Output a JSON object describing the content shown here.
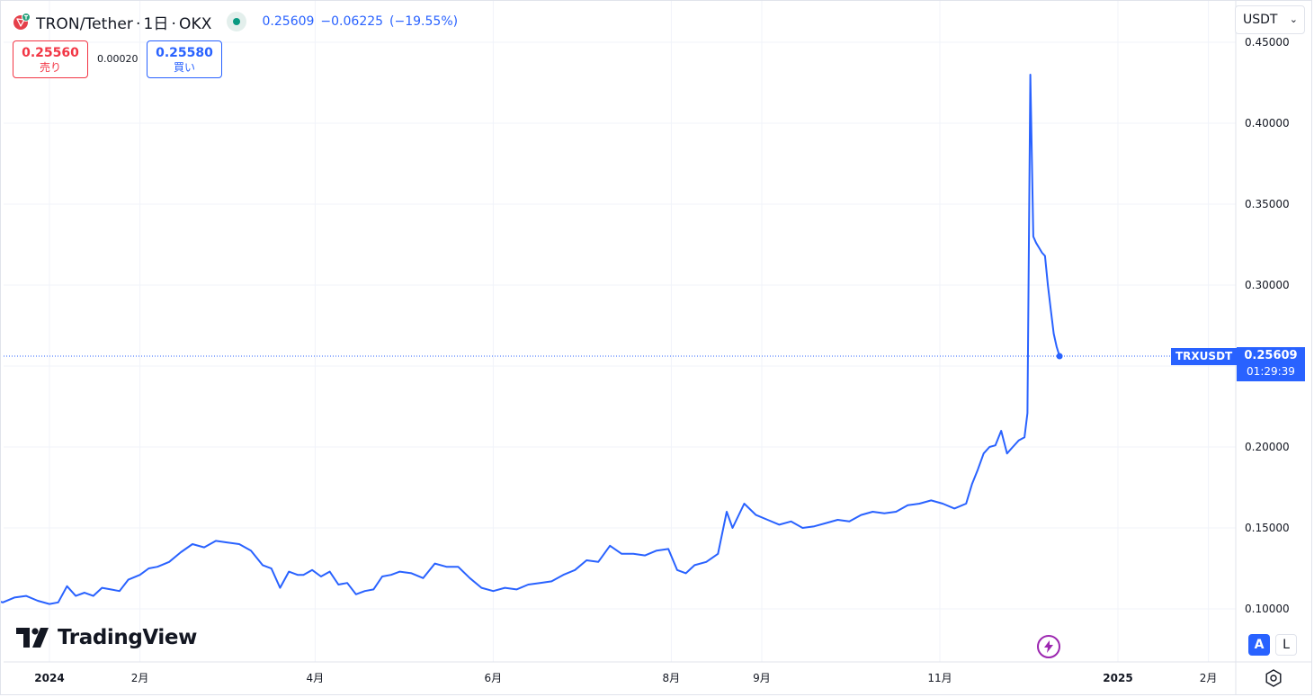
{
  "header": {
    "symbol_name": "TRON/Tether",
    "interval": "1日",
    "exchange": "OKX",
    "last_price": "0.25609",
    "change": "−0.06225",
    "change_pct": "(−19.55%)",
    "symbol_icon": "tron-logo-icon",
    "status_icon": "market-open-dot-icon"
  },
  "trade": {
    "sell_price": "0.25560",
    "sell_label": "売り",
    "spread": "0.00020",
    "buy_price": "0.25580",
    "buy_label": "買い"
  },
  "currency_select": {
    "value": "USDT",
    "icon": "chevron-down-icon"
  },
  "last_price_tag": {
    "symbol": "TRXUSDT",
    "price": "0.25609",
    "countdown": "01:29:39"
  },
  "brand": {
    "logo_text": "TradingView"
  },
  "controls": {
    "auto_scale": "A",
    "log_scale": "L",
    "flash_icon": "lightning-icon",
    "settings_icon": "gear-icon"
  },
  "colors": {
    "line": "#2962ff",
    "sell": "#f23645",
    "buy": "#2962ff",
    "status_green": "#089981",
    "flash": "#9c27b0"
  },
  "chart_data": {
    "type": "line",
    "title": "TRON/Tether · 1日 · OKX",
    "x_start": "2023-12-01",
    "x_end": "2025-03-01",
    "xlabel": "",
    "ylabel": "",
    "ylim": [
      0.08,
      0.45
    ],
    "y_ticks": [
      "0.10000",
      "0.15000",
      "0.20000",
      "0.25000",
      "0.30000",
      "0.35000",
      "0.40000",
      "0.45000"
    ],
    "x_ticks": [
      {
        "date": "2024-01-01",
        "label": "2024",
        "bold": true
      },
      {
        "date": "2024-02-01",
        "label": "2月",
        "bold": false
      },
      {
        "date": "2024-04-01",
        "label": "4月",
        "bold": false
      },
      {
        "date": "2024-06-01",
        "label": "6月",
        "bold": false
      },
      {
        "date": "2024-08-01",
        "label": "8月",
        "bold": false
      },
      {
        "date": "2024-09-01",
        "label": "9月",
        "bold": false
      },
      {
        "date": "2024-11-01",
        "label": "11月",
        "bold": false
      },
      {
        "date": "2025-01-01",
        "label": "2025",
        "bold": true
      },
      {
        "date": "2025-02-01",
        "label": "2月",
        "bold": false
      }
    ],
    "grid": true,
    "last_value": 0.25609,
    "series": [
      {
        "name": "TRXUSDT",
        "x": [
          "2023-12-01",
          "2023-12-04",
          "2023-12-08",
          "2023-12-12",
          "2023-12-16",
          "2023-12-20",
          "2023-12-24",
          "2023-12-28",
          "2024-01-01",
          "2024-01-04",
          "2024-01-07",
          "2024-01-10",
          "2024-01-13",
          "2024-01-16",
          "2024-01-19",
          "2024-01-22",
          "2024-01-25",
          "2024-01-28",
          "2024-02-01",
          "2024-02-04",
          "2024-02-07",
          "2024-02-11",
          "2024-02-15",
          "2024-02-19",
          "2024-02-23",
          "2024-02-27",
          "2024-03-02",
          "2024-03-06",
          "2024-03-10",
          "2024-03-14",
          "2024-03-17",
          "2024-03-20",
          "2024-03-23",
          "2024-03-26",
          "2024-03-28",
          "2024-03-31",
          "2024-04-03",
          "2024-04-06",
          "2024-04-09",
          "2024-04-12",
          "2024-04-15",
          "2024-04-18",
          "2024-04-21",
          "2024-04-24",
          "2024-04-27",
          "2024-04-30",
          "2024-05-04",
          "2024-05-08",
          "2024-05-12",
          "2024-05-16",
          "2024-05-20",
          "2024-05-24",
          "2024-05-28",
          "2024-06-01",
          "2024-06-05",
          "2024-06-09",
          "2024-06-13",
          "2024-06-17",
          "2024-06-21",
          "2024-06-25",
          "2024-06-29",
          "2024-07-03",
          "2024-07-07",
          "2024-07-11",
          "2024-07-15",
          "2024-07-19",
          "2024-07-23",
          "2024-07-27",
          "2024-07-31",
          "2024-08-03",
          "2024-08-06",
          "2024-08-09",
          "2024-08-13",
          "2024-08-17",
          "2024-08-20",
          "2024-08-22",
          "2024-08-26",
          "2024-08-30",
          "2024-09-03",
          "2024-09-07",
          "2024-09-11",
          "2024-09-15",
          "2024-09-19",
          "2024-09-23",
          "2024-09-27",
          "2024-10-01",
          "2024-10-05",
          "2024-10-09",
          "2024-10-13",
          "2024-10-17",
          "2024-10-21",
          "2024-10-25",
          "2024-10-29",
          "2024-11-02",
          "2024-11-06",
          "2024-11-10",
          "2024-11-12",
          "2024-11-14",
          "2024-11-16",
          "2024-11-18",
          "2024-11-20",
          "2024-11-22",
          "2024-11-24",
          "2024-11-26",
          "2024-11-28",
          "2024-11-30",
          "2024-12-01",
          "2024-12-02",
          "2024-12-03",
          "2024-12-04",
          "2024-12-05",
          "2024-12-06",
          "2024-12-07",
          "2024-12-08",
          "2024-12-09",
          "2024-12-10",
          "2024-12-11",
          "2024-12-12"
        ],
        "values": [
          0.103,
          0.101,
          0.105,
          0.106,
          0.104,
          0.107,
          0.108,
          0.105,
          0.103,
          0.104,
          0.114,
          0.108,
          0.11,
          0.108,
          0.113,
          0.112,
          0.111,
          0.118,
          0.121,
          0.125,
          0.126,
          0.129,
          0.135,
          0.14,
          0.138,
          0.142,
          0.141,
          0.14,
          0.136,
          0.127,
          0.125,
          0.113,
          0.123,
          0.121,
          0.121,
          0.124,
          0.12,
          0.123,
          0.115,
          0.116,
          0.109,
          0.111,
          0.112,
          0.12,
          0.121,
          0.123,
          0.122,
          0.119,
          0.128,
          0.126,
          0.126,
          0.119,
          0.113,
          0.111,
          0.113,
          0.112,
          0.115,
          0.116,
          0.117,
          0.121,
          0.124,
          0.13,
          0.129,
          0.139,
          0.134,
          0.134,
          0.133,
          0.136,
          0.137,
          0.124,
          0.122,
          0.127,
          0.129,
          0.134,
          0.16,
          0.15,
          0.165,
          0.158,
          0.155,
          0.152,
          0.154,
          0.15,
          0.151,
          0.153,
          0.155,
          0.154,
          0.158,
          0.16,
          0.159,
          0.16,
          0.164,
          0.165,
          0.167,
          0.165,
          0.162,
          0.165,
          0.177,
          0.186,
          0.196,
          0.2,
          0.201,
          0.21,
          0.196,
          0.2,
          0.204,
          0.206,
          0.221,
          0.43,
          0.33,
          0.326,
          0.323,
          0.32,
          0.318,
          0.3,
          0.285,
          0.27,
          0.262,
          0.25609
        ]
      }
    ]
  }
}
